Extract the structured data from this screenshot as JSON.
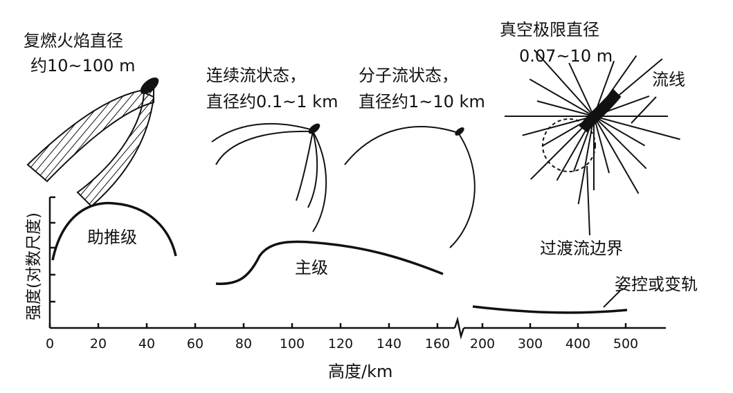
{
  "labels": {
    "reignition": [
      "复燃火焰直径",
      "约10~100 m"
    ],
    "continuum": [
      "连续流状态，",
      "直径约0.1~1 km"
    ],
    "molecular": [
      "分子流状态，",
      "直径约1~10 km"
    ],
    "vacuum": [
      "真空极限直径",
      "0.07~10 m"
    ],
    "streamline": "流线",
    "transition": "过渡流边界",
    "booster": "助推级",
    "main_stage": "主级",
    "attitude": "姿控或变轨"
  },
  "axis": {
    "xlabel": "高度/km",
    "ylabel": "强度(对数尺度)",
    "ticks_left": [
      "0",
      "20",
      "40",
      "60",
      "80",
      "100",
      "120",
      "140",
      "160"
    ],
    "ticks_right": [
      "200",
      "300",
      "400",
      "500"
    ]
  }
}
